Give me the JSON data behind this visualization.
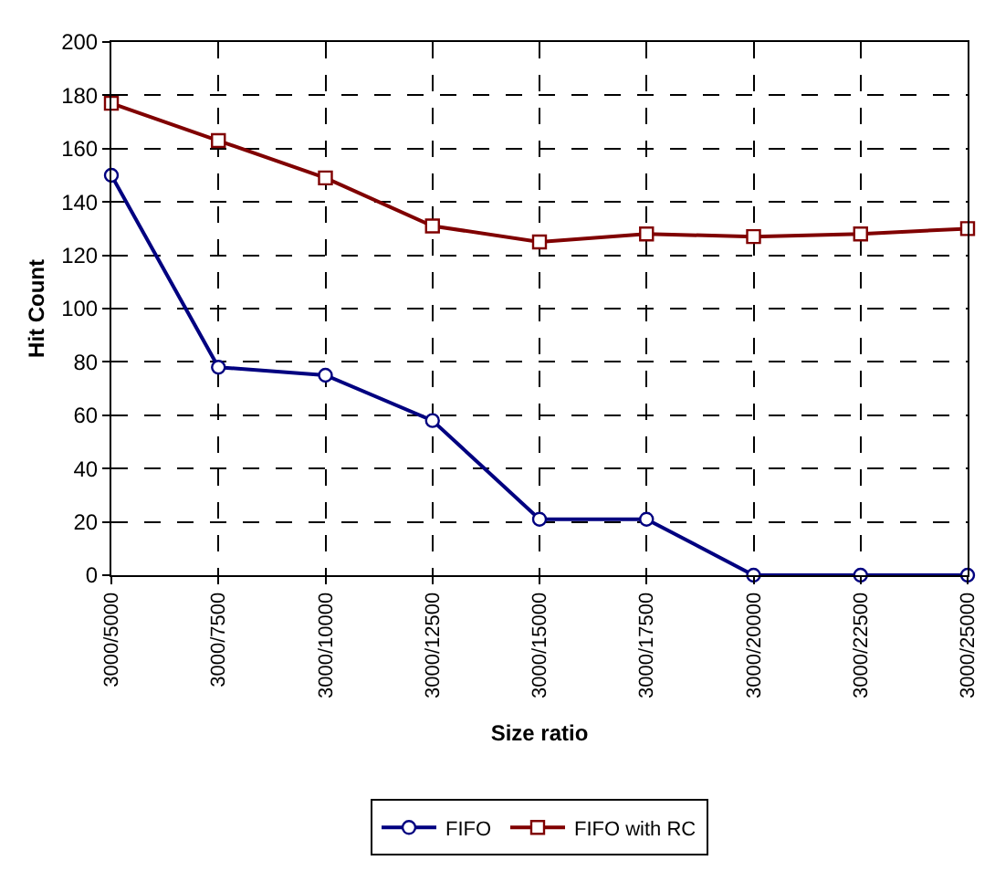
{
  "chart_data": {
    "type": "line",
    "xlabel": "Size ratio",
    "ylabel": "Hit Count",
    "categories": [
      "3000/5000",
      "3000/7500",
      "3000/10000",
      "3000/12500",
      "3000/15000",
      "3000/17500",
      "3000/20000",
      "3000/22500",
      "3000/25000"
    ],
    "series": [
      {
        "name": "FIFO",
        "color": "#000080",
        "marker": "circle",
        "values": [
          150,
          78,
          75,
          58,
          21,
          21,
          0,
          0,
          0
        ]
      },
      {
        "name": "FIFO with RC",
        "color": "#800000",
        "marker": "square",
        "values": [
          177,
          163,
          149,
          131,
          125,
          128,
          127,
          128,
          130
        ]
      }
    ],
    "ylim": [
      0,
      200
    ],
    "yticks": [
      0,
      20,
      40,
      60,
      80,
      100,
      120,
      140,
      160,
      180,
      200
    ],
    "grid": true,
    "legend": "bottom",
    "line_style": "solid"
  }
}
